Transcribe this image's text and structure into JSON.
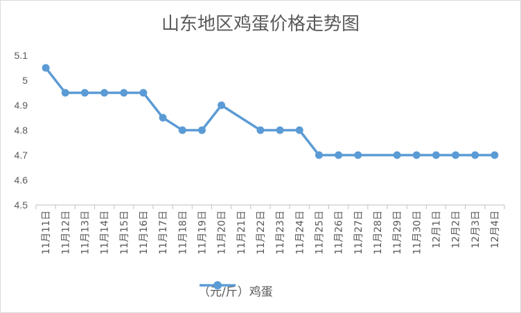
{
  "chart_data": {
    "type": "line",
    "title": "山东地区鸡蛋价格走势图",
    "categories": [
      "11月11日",
      "11月12日",
      "11月13日",
      "11月14日",
      "11月15日",
      "11月16日",
      "11月17日",
      "11月18日",
      "11月19日",
      "11月20日",
      "11月21日",
      "11月22日",
      "11月23日",
      "11月24日",
      "11月25日",
      "11月26日",
      "11月27日",
      "11月28日",
      "11月29日",
      "11月30日",
      "12月1日",
      "12月2日",
      "12月3日",
      "12月4日"
    ],
    "series": [
      {
        "name": "（元/斤）鸡蛋",
        "values": [
          5.05,
          4.95,
          4.95,
          4.95,
          4.95,
          4.95,
          4.85,
          4.8,
          4.8,
          4.9,
          null,
          4.8,
          4.8,
          4.8,
          4.7,
          4.7,
          4.7,
          null,
          4.7,
          4.7,
          4.7,
          4.7,
          4.7,
          4.7
        ]
      }
    ],
    "ylim": [
      4.5,
      5.1
    ],
    "yticks": [
      "4.5",
      "4.6",
      "4.7",
      "4.8",
      "4.9",
      "5",
      "5.1"
    ],
    "xlabel": "",
    "ylabel": "",
    "grid": false,
    "legend_position": "bottom",
    "colors": {
      "series": "#5b9bd5",
      "axis": "#bfbfbf",
      "text": "#595959"
    }
  }
}
